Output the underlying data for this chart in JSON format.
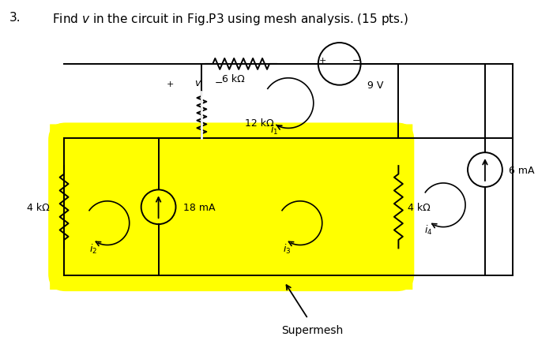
{
  "title_num": "3.",
  "title_text": "Find $v$ in the circuit in Fig.P3 using mesh analysis. (15 pts.)",
  "bg_color": "#ffffff",
  "yellow_color": "#ffff00",
  "black_color": "#000000",
  "supermesh_label": "Supermesh",
  "R1_label": "6 kΩ",
  "R2_label": "12 kΩ",
  "R3_label": "4 kΩ",
  "R4_label": "4 kΩ",
  "V1_label": "9 V",
  "I1_label": "18 mA",
  "I2_label": "6 mA",
  "i1_label": "$i_1$",
  "i2_label": "$i_2$",
  "i3_label": "$i_3$",
  "i4_label": "$i_4$",
  "v_plus": "+",
  "v_sym": "$v$",
  "v_minus": "−"
}
